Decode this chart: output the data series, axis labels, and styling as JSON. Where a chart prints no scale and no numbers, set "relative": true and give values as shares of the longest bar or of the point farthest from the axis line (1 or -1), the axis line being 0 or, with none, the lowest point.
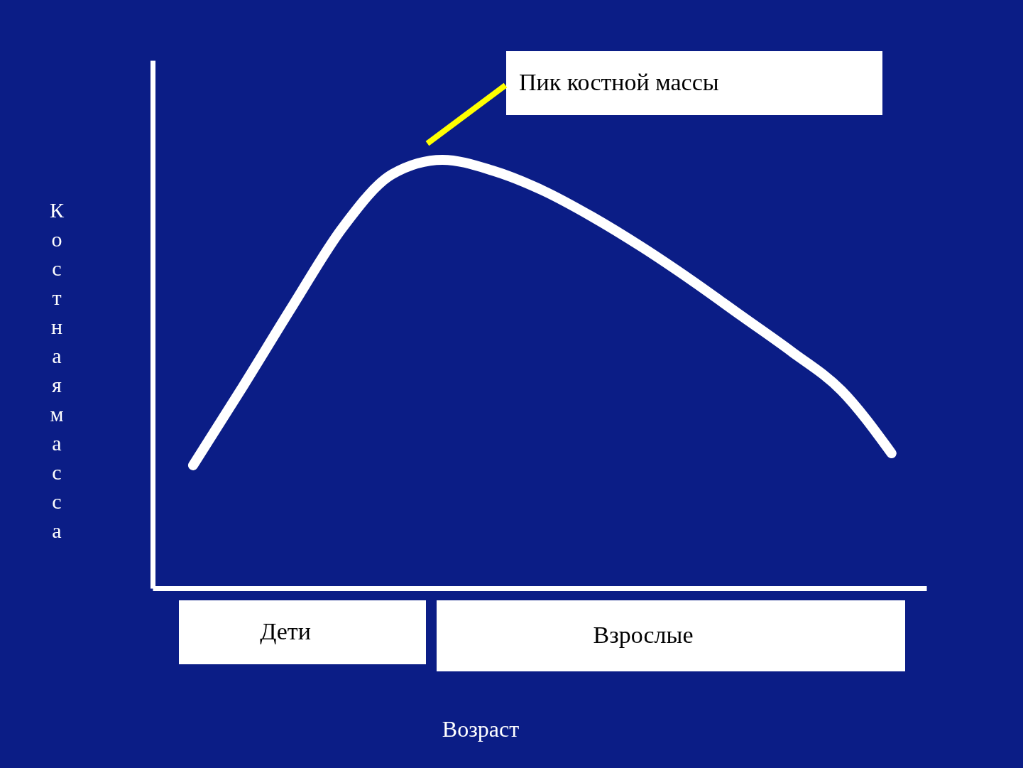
{
  "chart_data": {
    "type": "line",
    "relative": true,
    "ylabel": "Костная масса",
    "categories": [
      null,
      null,
      null,
      null,
      null,
      null,
      null,
      null,
      null,
      null,
      null,
      null,
      null,
      null,
      null
    ],
    "series": [
      {
        "color": "#ffffff",
        "values": [
          0.287,
          0.471,
          0.66,
          0.842,
          0.967,
          1.0,
          0.975,
          0.929,
          0.867,
          0.796,
          0.718,
          0.635,
          0.552,
          0.461,
          0.315
        ]
      }
    ],
    "annotations": [
      "Пик костной массы",
      "Дети",
      "Взрослые",
      "Возраст"
    ],
    "grid": false,
    "marker": "none",
    "line_style": "solid"
  }
}
